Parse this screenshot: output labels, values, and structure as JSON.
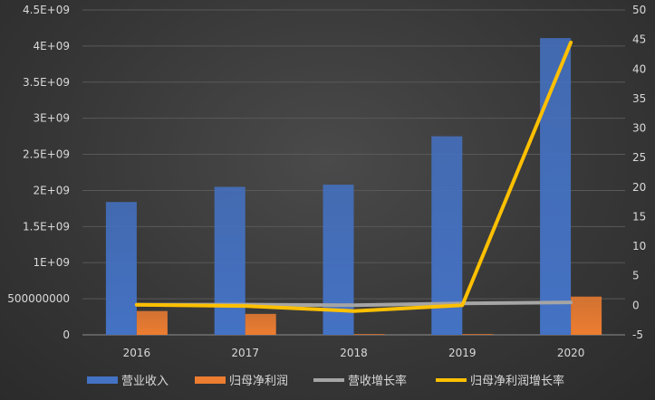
{
  "chart_data": {
    "type": "bar",
    "categories": [
      "2016",
      "2017",
      "2018",
      "2019",
      "2020"
    ],
    "y_left": {
      "ylim": [
        0,
        4500000000
      ],
      "ticks": [
        0,
        500000000,
        1000000000,
        1500000000,
        2000000000,
        2500000000,
        3000000000,
        3500000000,
        4000000000,
        4500000000
      ],
      "tick_labels": [
        "0",
        "500000000",
        "1E+09",
        "1.5E+09",
        "2E+09",
        "2.5E+09",
        "3E+09",
        "3.5E+09",
        "4E+09",
        "4.5E+09"
      ]
    },
    "y_right": {
      "ylim": [
        -5,
        50
      ],
      "ticks": [
        -5,
        0,
        5,
        10,
        15,
        20,
        25,
        30,
        35,
        40,
        45,
        50
      ],
      "tick_labels": [
        "-5",
        "0",
        "5",
        "10",
        "15",
        "20",
        "25",
        "30",
        "35",
        "40",
        "45",
        "50"
      ]
    },
    "series": [
      {
        "name": "营业收入",
        "kind": "bar",
        "axis": "left",
        "color": "#4472c4",
        "values": [
          1840000000,
          2050000000,
          2080000000,
          2750000000,
          4110000000
        ]
      },
      {
        "name": "归母净利润",
        "kind": "bar",
        "axis": "left",
        "color": "#ed7d31",
        "values": [
          330000000,
          290000000,
          10000000,
          10000000,
          530000000
        ]
      },
      {
        "name": "营收增长率",
        "kind": "line",
        "axis": "right",
        "color": "#a5a5a5",
        "values": [
          0.1,
          0.11,
          0.02,
          0.33,
          0.49
        ]
      },
      {
        "name": "归母净利润增长率",
        "kind": "line",
        "axis": "right",
        "color": "#ffc000",
        "values": [
          0.1,
          -0.12,
          -0.97,
          0.0,
          44.5
        ]
      }
    ],
    "grid": true,
    "legend_position": "bottom"
  }
}
